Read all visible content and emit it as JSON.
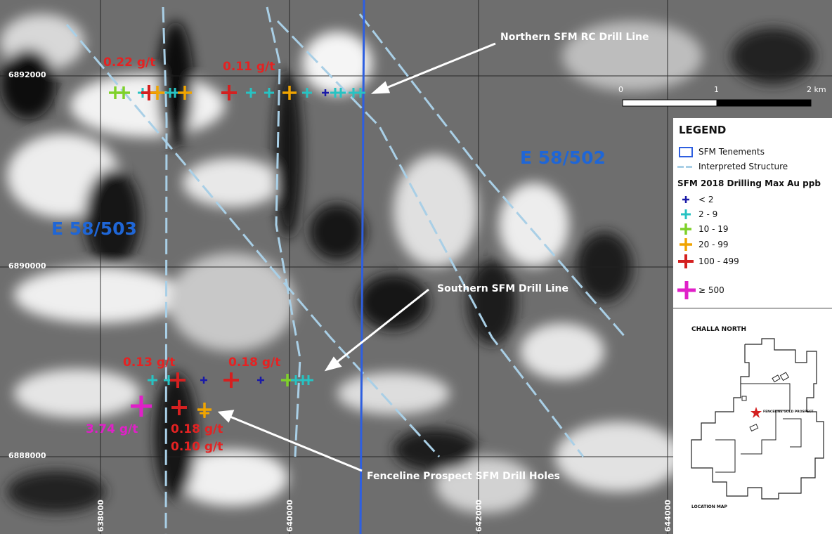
{
  "coords": {
    "north_1": "6892000",
    "north_2": "6890000",
    "north_3": "6888000",
    "east_1": "638000",
    "east_2": "640000",
    "east_3": "642000",
    "east_4": "644000"
  },
  "tenements": [
    "E 58/502",
    "E 58/503"
  ],
  "scale": {
    "labels": [
      "0",
      "1",
      "2 km"
    ]
  },
  "callouts": {
    "northern": "Northern SFM RC Drill Line",
    "southern": "Southern SFM Drill Line",
    "fenceline": "Fenceline Prospect SFM Drill Holes"
  },
  "assays": {
    "a1": "0.22 g/t",
    "a2": "0.11 g/t",
    "a3": "0.13 g/t",
    "a4": "0.18 g/t",
    "a5": "3.74 g/t",
    "a6": "0.18 g/t",
    "a7": "0.10 g/t"
  },
  "colors": {
    "tenement_line": "#2e5fe0",
    "structure_line": "#a9cfe6",
    "lt2": "#1a1aa8",
    "r2_9": "#27c3c3",
    "r10_19": "#7fd12a",
    "r20_99": "#f0a400",
    "r100_499": "#d42020",
    "r500": "#e020c8",
    "assay_red": "#e52222",
    "assay_magenta": "#e020c8"
  },
  "legend": {
    "title": "LEGEND",
    "tenements_label": "SFM Tenements",
    "structure_label": "Interpreted Structure",
    "drilling_title": "SFM 2018 Drilling Max Au ppb",
    "classes": [
      "< 2",
      "2 - 9",
      "10 - 19",
      "20 - 99",
      "100 - 499",
      "≥ 500"
    ]
  },
  "inset": {
    "title": "CHALLA NORTH",
    "prospect": "FENCELINE GOLD PROSPECT",
    "footer": "LOCATION MAP"
  }
}
